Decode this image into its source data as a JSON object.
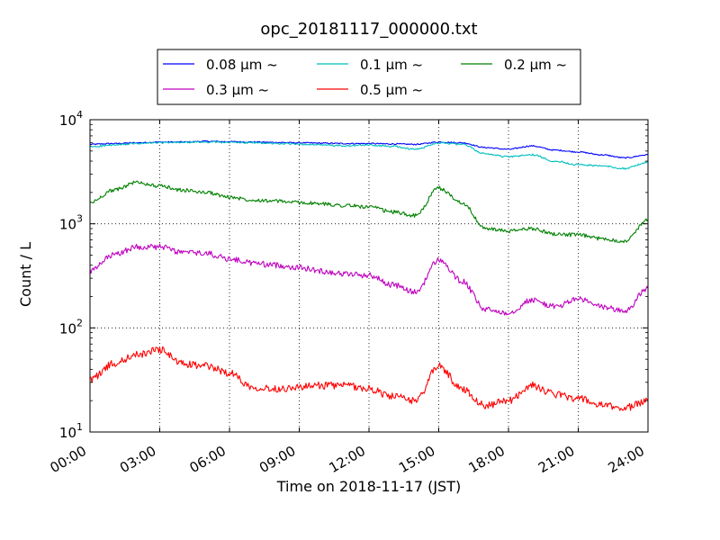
{
  "chart_data": {
    "type": "line",
    "title": "opc_20181117_000000.txt",
    "xlabel": "Time on 2018-11-17 (JST)",
    "ylabel": "Count / L",
    "y_scale": "log",
    "ylim": [
      10,
      10000
    ],
    "xlim": [
      "00:00",
      "24:00"
    ],
    "grid": true,
    "legend_position": "top-center",
    "x_ticks": [
      "00:00",
      "03:00",
      "06:00",
      "09:00",
      "12:00",
      "15:00",
      "18:00",
      "21:00",
      "24:00"
    ],
    "y_ticks": [
      {
        "base": "10",
        "exp": "1",
        "value": 10
      },
      {
        "base": "10",
        "exp": "2",
        "value": 100
      },
      {
        "base": "10",
        "exp": "3",
        "value": 1000
      },
      {
        "base": "10",
        "exp": "4",
        "value": 10000
      }
    ],
    "x": [
      "00:00",
      "01:00",
      "02:00",
      "03:00",
      "04:00",
      "05:00",
      "06:00",
      "07:00",
      "08:00",
      "09:00",
      "10:00",
      "11:00",
      "12:00",
      "13:00",
      "14:00",
      "15:00",
      "16:00",
      "17:00",
      "18:00",
      "19:00",
      "20:00",
      "21:00",
      "22:00",
      "23:00",
      "24:00"
    ],
    "series": [
      {
        "name": "0.08 μm ~",
        "color": "#0000ff",
        "values": [
          5800,
          5900,
          6000,
          6100,
          6100,
          6200,
          6150,
          6100,
          6050,
          6000,
          5950,
          5900,
          5900,
          5850,
          5800,
          6100,
          6000,
          5400,
          5200,
          5600,
          5100,
          4900,
          4600,
          4300,
          4600
        ]
      },
      {
        "name": "0.1 μm ~",
        "color": "#00bfbf",
        "values": [
          5500,
          5700,
          5900,
          6000,
          6050,
          6100,
          6050,
          6000,
          5900,
          5850,
          5700,
          5600,
          5700,
          5550,
          5200,
          6000,
          5800,
          4700,
          4400,
          4600,
          4000,
          3700,
          3600,
          3400,
          3900
        ]
      },
      {
        "name": "0.2 μm ~",
        "color": "#008000",
        "values": [
          1600,
          2100,
          2500,
          2300,
          2100,
          2000,
          1800,
          1700,
          1650,
          1600,
          1550,
          1500,
          1450,
          1300,
          1200,
          2200,
          1600,
          900,
          850,
          900,
          800,
          780,
          720,
          680,
          1100
        ]
      },
      {
        "name": "0.3 μm ~",
        "color": "#bf00bf",
        "values": [
          350,
          500,
          600,
          600,
          530,
          520,
          460,
          420,
          400,
          380,
          350,
          330,
          320,
          260,
          220,
          450,
          280,
          150,
          140,
          185,
          160,
          190,
          160,
          145,
          240
        ]
      },
      {
        "name": "0.5 μm ~",
        "color": "#ff0000",
        "values": [
          32,
          45,
          55,
          62,
          45,
          43,
          37,
          27,
          26,
          27,
          28,
          28,
          26,
          22,
          20,
          43,
          26,
          18,
          20,
          28,
          23,
          21,
          18,
          17,
          20
        ]
      }
    ]
  }
}
